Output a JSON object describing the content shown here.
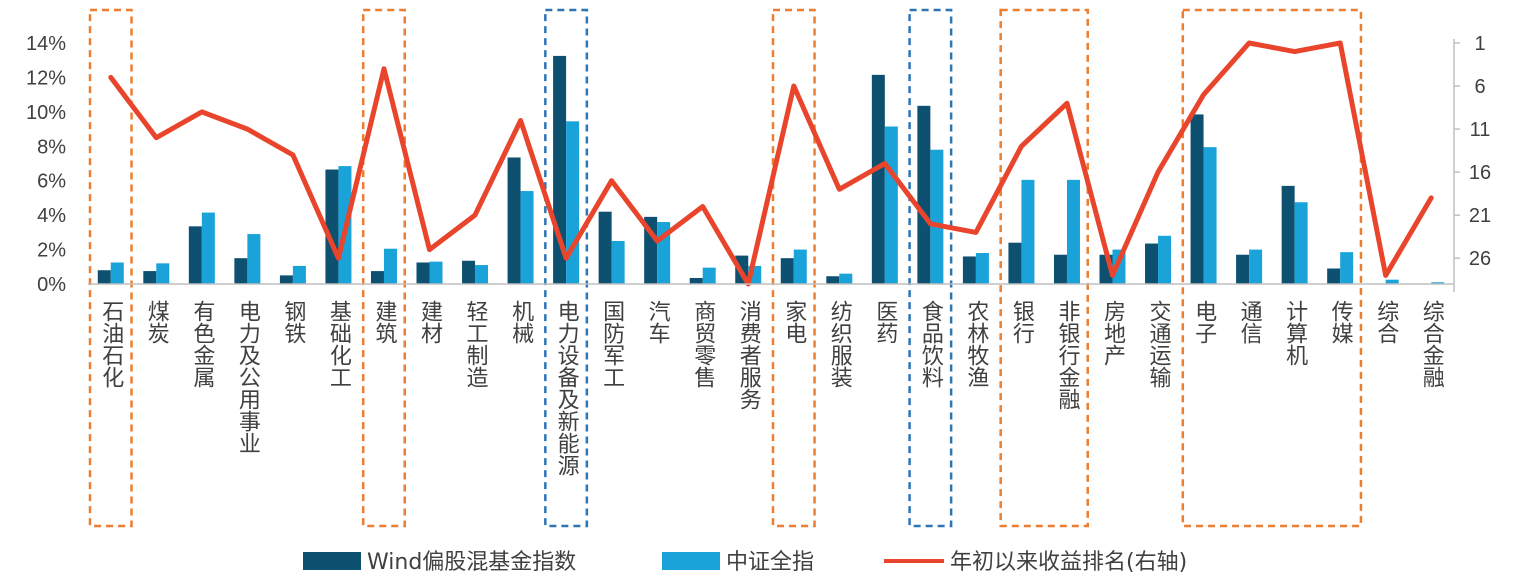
{
  "chart_data": {
    "type": "bar",
    "categories": [
      "石油石化",
      "煤炭",
      "有色金属",
      "电力及公用事业",
      "钢铁",
      "基础化工",
      "建筑",
      "建材",
      "轻工制造",
      "机械",
      "电力设备及新能源",
      "国防军工",
      "汽车",
      "商贸零售",
      "消费者服务",
      "家电",
      "纺织服装",
      "医药",
      "食品饮料",
      "农林牧渔",
      "银行",
      "非银行金融",
      "房地产",
      "交通运输",
      "电子",
      "通信",
      "计算机",
      "传媒",
      "综合",
      "综合金融"
    ],
    "series": [
      {
        "name": "Wind偏股混基金指数",
        "type": "bar",
        "axis": "left",
        "color": "#0d5070",
        "values": [
          0.8,
          0.75,
          3.35,
          1.5,
          0.5,
          6.65,
          0.75,
          1.25,
          1.35,
          7.35,
          13.25,
          4.2,
          3.9,
          0.35,
          1.65,
          1.5,
          0.45,
          12.15,
          10.35,
          1.6,
          2.4,
          1.7,
          1.7,
          2.35,
          9.85,
          1.7,
          5.7,
          0.9,
          0.0,
          0.0
        ]
      },
      {
        "name": "中证全指",
        "type": "bar",
        "axis": "left",
        "color": "#1aa3d9",
        "values": [
          1.25,
          1.2,
          4.15,
          2.9,
          1.05,
          6.85,
          2.05,
          1.3,
          1.1,
          5.4,
          9.45,
          2.5,
          3.6,
          0.95,
          1.05,
          2.0,
          0.6,
          9.15,
          7.8,
          1.8,
          6.05,
          6.05,
          2.0,
          2.8,
          7.95,
          2.0,
          4.75,
          1.85,
          0.25,
          0.1
        ]
      },
      {
        "name": "年初以来收益排名(右轴)",
        "type": "line",
        "axis": "right",
        "color": "#e8452c",
        "values": [
          5,
          12,
          9,
          11,
          14,
          26,
          4,
          25,
          21,
          10,
          26,
          17,
          24,
          20,
          29,
          6,
          18,
          15,
          22,
          23,
          13,
          8,
          28,
          16,
          7,
          1,
          2,
          1,
          28,
          19
        ]
      }
    ],
    "yleft": {
      "min": 0,
      "max": 14,
      "step": 2,
      "ticks": [
        "0%",
        "2%",
        "4%",
        "6%",
        "8%",
        "10%",
        "12%",
        "14%"
      ]
    },
    "yright": {
      "min": 1,
      "max": 29,
      "reversed": true,
      "ticks": [
        "1",
        "6",
        "11",
        "16",
        "21",
        "26"
      ]
    },
    "highlight_groups": [
      {
        "from": 0,
        "to": 0,
        "color": "#ed7d31"
      },
      {
        "from": 6,
        "to": 6,
        "color": "#ed7d31"
      },
      {
        "from": 10,
        "to": 10,
        "color": "#2e75b6"
      },
      {
        "from": 15,
        "to": 15,
        "color": "#ed7d31"
      },
      {
        "from": 18,
        "to": 18,
        "color": "#2e75b6"
      },
      {
        "from": 20,
        "to": 21,
        "color": "#ed7d31"
      },
      {
        "from": 24,
        "to": 27,
        "color": "#ed7d31"
      }
    ],
    "legend_position": "bottom",
    "title": "",
    "xlabel": "",
    "ylabel": ""
  }
}
